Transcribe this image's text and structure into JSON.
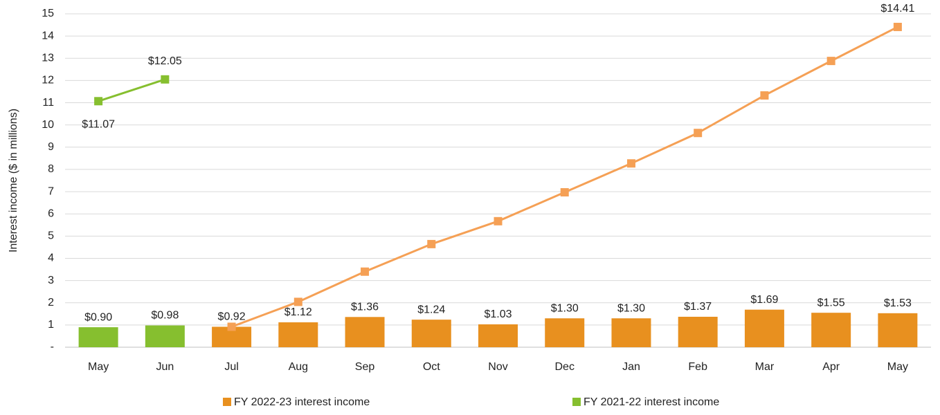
{
  "chart_data": {
    "type": "bar",
    "y_label": "Interest income ($ in millions)",
    "categories": [
      "May",
      "Jun",
      "Jul",
      "Aug",
      "Sep",
      "Oct",
      "Nov",
      "Dec",
      "Jan",
      "Feb",
      "Mar",
      "Apr",
      "May"
    ],
    "ylim": [
      0,
      15
    ],
    "yticks": [
      {
        "value": 0,
        "label": "-"
      },
      1,
      2,
      3,
      4,
      5,
      6,
      7,
      8,
      9,
      10,
      11,
      12,
      13,
      14,
      15
    ],
    "grid": true,
    "legend": "bottom",
    "series": [
      {
        "name": "FY 2022-23 interest income",
        "type": "bar",
        "color": "#e8901f",
        "values": [
          null,
          null,
          0.92,
          1.12,
          1.36,
          1.24,
          1.03,
          1.3,
          1.3,
          1.37,
          1.69,
          1.55,
          1.53
        ],
        "value_labels": [
          null,
          null,
          "$0.92",
          "$1.12",
          "$1.36",
          "$1.24",
          "$1.03",
          "$1.30",
          "$1.30",
          "$1.37",
          "$1.69",
          "$1.55",
          "$1.53"
        ]
      },
      {
        "name": "FY 2021-22 interest income",
        "type": "bar",
        "color": "#86bf2f",
        "values": [
          0.9,
          0.98,
          null,
          null,
          null,
          null,
          null,
          null,
          null,
          null,
          null,
          null,
          null
        ],
        "value_labels": [
          "$0.90",
          "$0.98",
          null,
          null,
          null,
          null,
          null,
          null,
          null,
          null,
          null,
          null,
          null
        ]
      },
      {
        "type": "line",
        "color": "#f5a055",
        "values": [
          null,
          null,
          0.92,
          2.04,
          3.4,
          4.64,
          5.67,
          6.97,
          8.27,
          9.64,
          11.33,
          12.88,
          14.41
        ],
        "value_labels": [
          null,
          null,
          null,
          null,
          null,
          null,
          null,
          null,
          null,
          null,
          null,
          null,
          "$14.41"
        ]
      },
      {
        "type": "line",
        "color": "#86bf2f",
        "values": [
          11.07,
          12.05,
          null,
          null,
          null,
          null,
          null,
          null,
          null,
          null,
          null,
          null,
          null
        ],
        "value_labels": [
          "$11.07",
          "$12.05",
          null,
          null,
          null,
          null,
          null,
          null,
          null,
          null,
          null,
          null,
          null
        ]
      }
    ]
  }
}
